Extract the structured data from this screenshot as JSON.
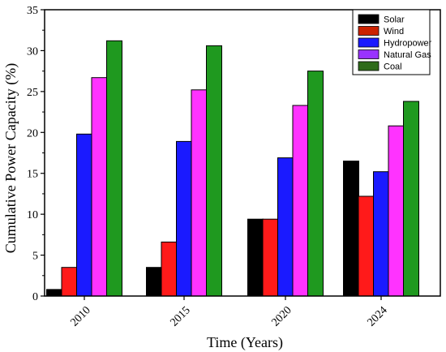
{
  "chart_data": {
    "type": "bar",
    "title": "",
    "xlabel": "Time (Years)",
    "ylabel": "Cumulative Power Capacity (%)",
    "ylim": [
      0,
      35
    ],
    "yticks": [
      0,
      5,
      10,
      15,
      20,
      25,
      30,
      35
    ],
    "categories": [
      "2010",
      "2015",
      "2020",
      "2024"
    ],
    "legend_position": "top-right",
    "grid": false,
    "series": [
      {
        "name": "Solar",
        "color": "#000000",
        "values": [
          0.8,
          3.5,
          9.4,
          16.5
        ]
      },
      {
        "name": "Wind",
        "color": "#ff1a1a",
        "values": [
          3.5,
          6.6,
          9.4,
          12.2
        ]
      },
      {
        "name": "Hydropower",
        "color": "#1a1aff",
        "values": [
          19.8,
          18.9,
          16.9,
          15.2
        ]
      },
      {
        "name": "Natural Gas",
        "color": "#ff33ff",
        "values": [
          26.7,
          25.2,
          23.3,
          20.8
        ]
      },
      {
        "name": "Coal",
        "color": "#1f991f",
        "values": [
          31.2,
          30.6,
          27.5,
          23.8
        ]
      }
    ],
    "legend_colors": [
      "#000000",
      "#cc2200",
      "#1a1aff",
      "#9933ff",
      "#2e6b1a"
    ]
  }
}
